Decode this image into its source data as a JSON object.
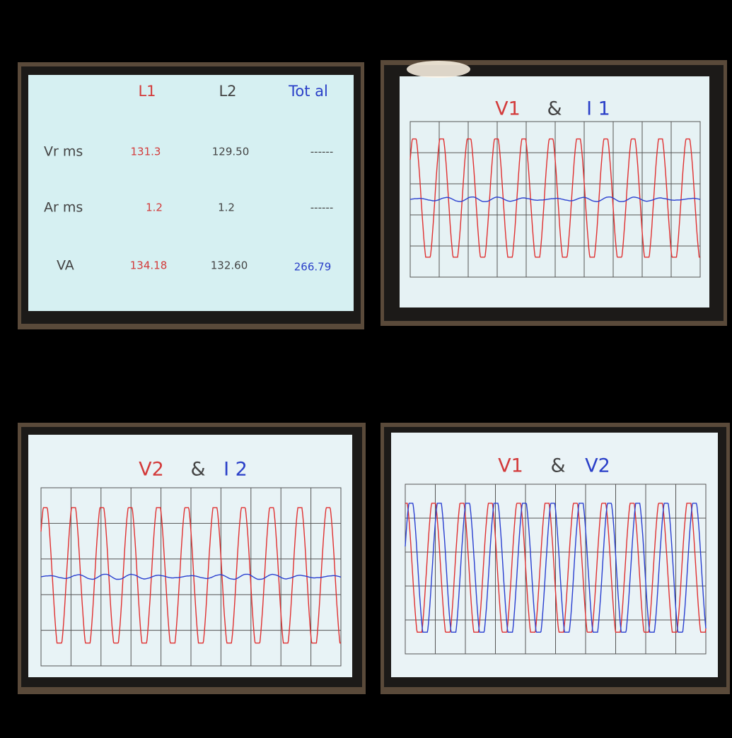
{
  "table": {
    "header": [
      null,
      "L1",
      "L2",
      "Tot al"
    ],
    "rows": [
      [
        "Vr ms",
        "131.3",
        "129.50",
        "------"
      ],
      [
        "Ar ms",
        "1.2",
        "1.2",
        "------"
      ],
      [
        "VA",
        "134.18",
        "132.60",
        "266.79"
      ]
    ]
  },
  "scopes": [
    {
      "title": [
        "V1",
        "&",
        "I 1"
      ]
    },
    {
      "title": [
        "V2",
        "&",
        "I 2"
      ]
    },
    {
      "title": [
        "V1",
        "&",
        "V2"
      ]
    }
  ]
}
